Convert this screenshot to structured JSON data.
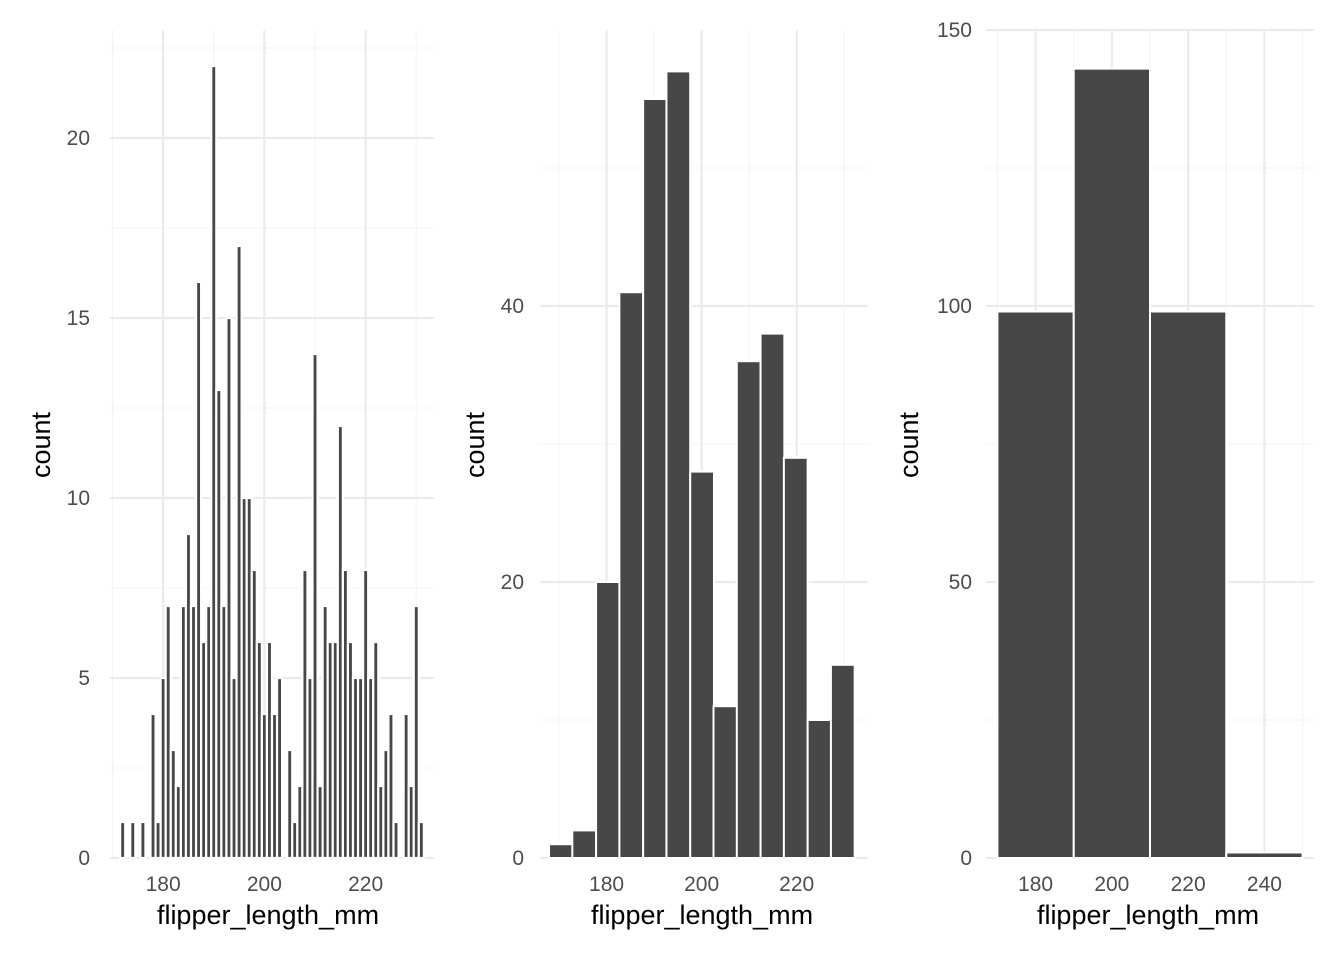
{
  "colors": {
    "bar_fill": "#474747",
    "bar_outline": "#ffffff",
    "grid_major": "#ebebeb",
    "grid_minor": "#f4f4f4",
    "tick_label": "#4d4d4d",
    "axis_title": "#000000",
    "background": "#ffffff"
  },
  "chart_data": [
    {
      "type": "bar",
      "chart_kind": "histogram",
      "xlabel": "flipper_length_mm",
      "ylabel": "count",
      "xlim": [
        169.5,
        233.5
      ],
      "ylim": [
        0,
        23
      ],
      "x_ticks": [
        180,
        200,
        220
      ],
      "y_ticks": [
        0,
        5,
        10,
        15,
        20
      ],
      "grid": true,
      "bin_width": 1,
      "bars": [
        {
          "x": 172,
          "y": 1
        },
        {
          "x": 174,
          "y": 1
        },
        {
          "x": 176,
          "y": 1
        },
        {
          "x": 178,
          "y": 4
        },
        {
          "x": 179,
          "y": 1
        },
        {
          "x": 180,
          "y": 5
        },
        {
          "x": 181,
          "y": 7
        },
        {
          "x": 182,
          "y": 3
        },
        {
          "x": 183,
          "y": 2
        },
        {
          "x": 184,
          "y": 7
        },
        {
          "x": 185,
          "y": 9
        },
        {
          "x": 186,
          "y": 7
        },
        {
          "x": 187,
          "y": 16
        },
        {
          "x": 188,
          "y": 6
        },
        {
          "x": 189,
          "y": 7
        },
        {
          "x": 190,
          "y": 22
        },
        {
          "x": 191,
          "y": 13
        },
        {
          "x": 192,
          "y": 7
        },
        {
          "x": 193,
          "y": 15
        },
        {
          "x": 194,
          "y": 5
        },
        {
          "x": 195,
          "y": 17
        },
        {
          "x": 196,
          "y": 10
        },
        {
          "x": 197,
          "y": 10
        },
        {
          "x": 198,
          "y": 8
        },
        {
          "x": 199,
          "y": 6
        },
        {
          "x": 200,
          "y": 4
        },
        {
          "x": 201,
          "y": 6
        },
        {
          "x": 202,
          "y": 4
        },
        {
          "x": 203,
          "y": 5
        },
        {
          "x": 205,
          "y": 3
        },
        {
          "x": 206,
          "y": 1
        },
        {
          "x": 207,
          "y": 2
        },
        {
          "x": 208,
          "y": 8
        },
        {
          "x": 209,
          "y": 5
        },
        {
          "x": 210,
          "y": 14
        },
        {
          "x": 211,
          "y": 2
        },
        {
          "x": 212,
          "y": 7
        },
        {
          "x": 213,
          "y": 6
        },
        {
          "x": 214,
          "y": 6
        },
        {
          "x": 215,
          "y": 12
        },
        {
          "x": 216,
          "y": 8
        },
        {
          "x": 217,
          "y": 6
        },
        {
          "x": 218,
          "y": 5
        },
        {
          "x": 219,
          "y": 5
        },
        {
          "x": 220,
          "y": 8
        },
        {
          "x": 221,
          "y": 5
        },
        {
          "x": 222,
          "y": 6
        },
        {
          "x": 223,
          "y": 2
        },
        {
          "x": 224,
          "y": 3
        },
        {
          "x": 225,
          "y": 4
        },
        {
          "x": 226,
          "y": 1
        },
        {
          "x": 228,
          "y": 4
        },
        {
          "x": 229,
          "y": 2
        },
        {
          "x": 230,
          "y": 7
        },
        {
          "x": 231,
          "y": 1
        }
      ]
    },
    {
      "type": "bar",
      "chart_kind": "histogram",
      "xlabel": "flipper_length_mm",
      "ylabel": "count",
      "xlim": [
        166,
        235
      ],
      "ylim": [
        0,
        60
      ],
      "x_ticks": [
        180,
        200,
        220
      ],
      "y_ticks": [
        0,
        20,
        40
      ],
      "grid": true,
      "bin_width": 5,
      "bars": [
        {
          "x": 170.4,
          "y": 1
        },
        {
          "x": 175.3,
          "y": 2
        },
        {
          "x": 180.3,
          "y": 20
        },
        {
          "x": 185.2,
          "y": 41
        },
        {
          "x": 190.2,
          "y": 55
        },
        {
          "x": 195.1,
          "y": 57
        },
        {
          "x": 200.1,
          "y": 28
        },
        {
          "x": 205.0,
          "y": 11
        },
        {
          "x": 209.9,
          "y": 36
        },
        {
          "x": 214.9,
          "y": 38
        },
        {
          "x": 219.8,
          "y": 29
        },
        {
          "x": 224.8,
          "y": 10
        },
        {
          "x": 229.7,
          "y": 14
        }
      ]
    },
    {
      "type": "bar",
      "chart_kind": "histogram",
      "xlabel": "flipper_length_mm",
      "ylabel": "count",
      "xlim": [
        167,
        253
      ],
      "ylim": [
        0,
        150
      ],
      "x_ticks": [
        180,
        200,
        220,
        240
      ],
      "y_ticks": [
        0,
        50,
        100,
        150
      ],
      "grid": true,
      "bin_width": 20,
      "bars": [
        {
          "x": 180,
          "y": 99
        },
        {
          "x": 200,
          "y": 143
        },
        {
          "x": 220,
          "y": 99
        },
        {
          "x": 240,
          "y": 1
        }
      ]
    }
  ]
}
